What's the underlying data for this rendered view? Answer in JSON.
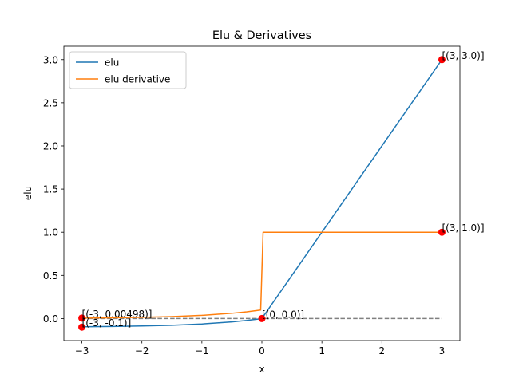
{
  "chart_data": {
    "type": "line",
    "title": "Elu & Derivatives",
    "xlabel": "x",
    "ylabel": "elu",
    "xlim": [
      -3.3,
      3.3
    ],
    "ylim": [
      -0.255,
      3.155
    ],
    "xticks": [
      -3,
      -2,
      -1,
      0,
      1,
      2,
      3
    ],
    "xtick_labels": [
      "−3",
      "−2",
      "−1",
      "0",
      "1",
      "2",
      "3"
    ],
    "yticks": [
      0.0,
      0.5,
      1.0,
      1.5,
      2.0,
      2.5,
      3.0
    ],
    "ytick_labels": [
      "0.0",
      "0.5",
      "1.0",
      "1.5",
      "2.0",
      "2.5",
      "3.0"
    ],
    "grid": false,
    "legend_position": "top-left",
    "series": [
      {
        "name": "elu",
        "color": "#1f77b4",
        "x": [
          -3.0,
          -2.5,
          -2.0,
          -1.5,
          -1.0,
          -0.5,
          -0.25,
          -0.05,
          0.0,
          1.0,
          2.0,
          3.0
        ],
        "y": [
          -0.095,
          -0.092,
          -0.086,
          -0.078,
          -0.063,
          -0.039,
          -0.022,
          -0.005,
          0.0,
          1.0,
          2.0,
          3.0
        ]
      },
      {
        "name": "elu derivative",
        "color": "#ff7f0e",
        "x": [
          -3.0,
          -2.5,
          -2.0,
          -1.5,
          -1.0,
          -0.5,
          -0.25,
          -0.02,
          -0.02,
          0.02,
          1.0,
          2.0,
          3.0
        ],
        "y": [
          0.005,
          0.008,
          0.014,
          0.022,
          0.037,
          0.061,
          0.078,
          0.098,
          0.098,
          1.0,
          1.0,
          1.0,
          1.0
        ]
      }
    ],
    "reference_line": {
      "y": 0.0,
      "x": [
        -3,
        3
      ],
      "style": "dashed",
      "color": "#808080"
    },
    "points": [
      {
        "x": 3,
        "y": 3.0,
        "label": "[(3, 3.0)]"
      },
      {
        "x": 3,
        "y": 1.0,
        "label": "[(3, 1.0)]"
      },
      {
        "x": 0,
        "y": 0.0,
        "label": "[(0, 0.0)]"
      },
      {
        "x": -3,
        "y": 0.005,
        "label": "[(-3, 0.00498)]"
      },
      {
        "x": -3,
        "y": -0.1,
        "label": "[(-3, -0.1)]"
      }
    ],
    "point_color": "#ff0000"
  }
}
